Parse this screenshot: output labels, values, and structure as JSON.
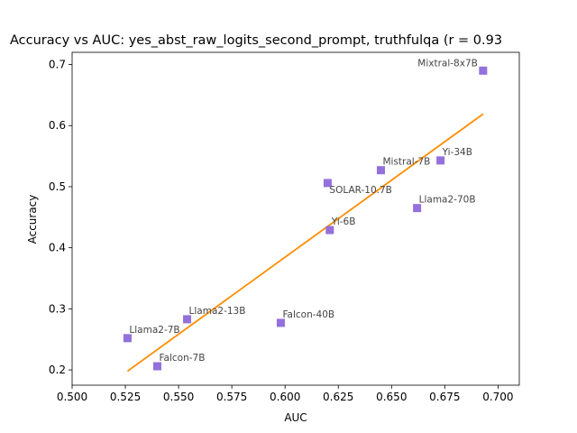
{
  "chart_data": {
    "type": "scatter",
    "title": "Accuracy vs AUC: yes_abst_raw_logits_second_prompt, truthfulqa (r = 0.93",
    "xlabel": "AUC",
    "ylabel": "Accuracy",
    "xlim": [
      0.5,
      0.71
    ],
    "ylim": [
      0.175,
      0.72
    ],
    "x_ticks": [
      "0.500",
      "0.525",
      "0.550",
      "0.575",
      "0.600",
      "0.625",
      "0.650",
      "0.675",
      "0.700"
    ],
    "y_ticks": [
      "0.2",
      "0.3",
      "0.4",
      "0.5",
      "0.6",
      "0.7"
    ],
    "grid": false,
    "marker": "square",
    "marker_color": "#9370db",
    "fit_line_color": "#ff8c00",
    "points": [
      {
        "label": "Mixtral-8x7B",
        "x": 0.693,
        "y": 0.69
      },
      {
        "label": "Yi-34B",
        "x": 0.673,
        "y": 0.543
      },
      {
        "label": "Mistral-7B",
        "x": 0.645,
        "y": 0.527
      },
      {
        "label": "SOLAR-10.7B",
        "x": 0.62,
        "y": 0.506
      },
      {
        "label": "Llama2-70B",
        "x": 0.662,
        "y": 0.465
      },
      {
        "label": "Yi-6B",
        "x": 0.621,
        "y": 0.429
      },
      {
        "label": "Llama2-13B",
        "x": 0.554,
        "y": 0.283
      },
      {
        "label": "Falcon-40B",
        "x": 0.598,
        "y": 0.277
      },
      {
        "label": "Llama2-7B",
        "x": 0.526,
        "y": 0.252
      },
      {
        "label": "Falcon-7B",
        "x": 0.54,
        "y": 0.206
      }
    ],
    "fit_line": {
      "x": [
        0.526,
        0.693
      ],
      "y": [
        0.198,
        0.619
      ]
    }
  }
}
